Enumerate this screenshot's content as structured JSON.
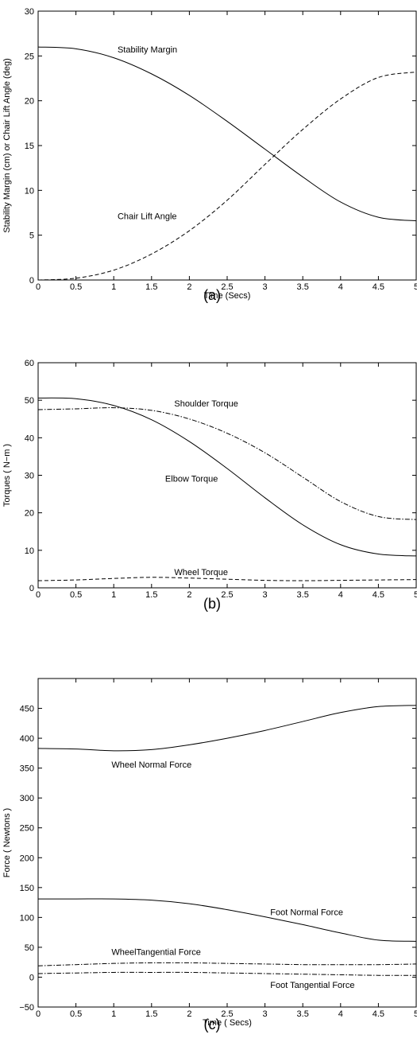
{
  "chart_data": [
    {
      "type": "line",
      "caption": "(a)",
      "xlabel": "Time (Secs)",
      "ylabel": "Stability Margin (cm) or Chair Lift Angle (deg)",
      "xlim": [
        0,
        5
      ],
      "ylim": [
        0,
        30
      ],
      "xticks": [
        0,
        0.5,
        1,
        1.5,
        2,
        2.5,
        3,
        3.5,
        4,
        4.5,
        5
      ],
      "xtick_labels": [
        "0",
        "0.5",
        "1",
        "1.5",
        "2",
        "2.5",
        "3",
        "3.5",
        "4",
        "4.5",
        "5"
      ],
      "yticks": [
        0,
        5,
        10,
        15,
        20,
        25,
        30
      ],
      "ytick_labels": [
        "0",
        "5",
        "10",
        "15",
        "20",
        "25",
        "30"
      ],
      "grid": false,
      "series": [
        {
          "name": "Stability Margin",
          "style": "solid",
          "x": [
            0,
            0.5,
            1,
            1.5,
            2,
            2.5,
            3,
            3.5,
            4,
            4.5,
            5
          ],
          "y": [
            26.0,
            25.8,
            24.8,
            23.0,
            20.6,
            17.7,
            14.6,
            11.5,
            8.7,
            7.0,
            6.6
          ]
        },
        {
          "name": "Chair Lift Angle",
          "style": "dashed",
          "x": [
            0,
            0.5,
            1,
            1.5,
            2,
            2.5,
            3,
            3.5,
            4,
            4.5,
            5
          ],
          "y": [
            0.0,
            0.2,
            1.1,
            2.9,
            5.5,
            8.9,
            12.9,
            16.8,
            20.2,
            22.6,
            23.2
          ]
        }
      ],
      "annotations": [
        {
          "text": "Stability Margin",
          "x": 1.05,
          "y": 25.4
        },
        {
          "text": "Chair Lift Angle",
          "x": 1.05,
          "y": 6.8
        }
      ]
    },
    {
      "type": "line",
      "caption": "(b)",
      "xlabel": "",
      "ylabel": "Torques ( N−m )",
      "xlim": [
        0,
        5
      ],
      "ylim": [
        0,
        60
      ],
      "xticks": [
        0,
        0.5,
        1,
        1.5,
        2,
        2.5,
        3,
        3.5,
        4,
        4.5,
        5
      ],
      "xtick_labels": [
        "0",
        "0.5",
        "1",
        "1.5",
        "2",
        "2.5",
        "3",
        "3.5",
        "4",
        "4.5",
        "5"
      ],
      "yticks": [
        0,
        10,
        20,
        30,
        40,
        50,
        60
      ],
      "ytick_labels": [
        "0",
        "10",
        "20",
        "30",
        "40",
        "50",
        "60"
      ],
      "grid": false,
      "series": [
        {
          "name": "Shoulder Torque",
          "style": "dashdot",
          "x": [
            0,
            0.5,
            1,
            1.5,
            2,
            2.5,
            3,
            3.5,
            4,
            4.5,
            5
          ],
          "y": [
            47.5,
            47.7,
            48.0,
            47.3,
            45.0,
            41.2,
            36.0,
            29.5,
            23.0,
            19.0,
            18.2
          ]
        },
        {
          "name": "Elbow Torque",
          "style": "solid",
          "x": [
            0,
            0.5,
            1,
            1.5,
            2,
            2.5,
            3,
            3.5,
            4,
            4.5,
            5
          ],
          "y": [
            50.6,
            50.4,
            48.6,
            44.8,
            39.0,
            31.8,
            24.0,
            16.8,
            11.5,
            9.0,
            8.5
          ]
        },
        {
          "name": "Wheel Torque",
          "style": "dashed",
          "x": [
            0,
            0.5,
            1,
            1.5,
            2,
            2.5,
            3,
            3.5,
            4,
            4.5,
            5
          ],
          "y": [
            1.9,
            2.1,
            2.5,
            2.8,
            2.6,
            2.3,
            2.0,
            1.9,
            2.0,
            2.1,
            2.2
          ]
        }
      ],
      "annotations": [
        {
          "text": "Shoulder Torque",
          "x": 1.8,
          "y": 48.3
        },
        {
          "text": "Elbow Torque",
          "x": 1.68,
          "y": 28.3
        },
        {
          "text": "Wheel Torque",
          "x": 1.8,
          "y": 3.4
        }
      ]
    },
    {
      "type": "line",
      "caption": "(c)",
      "xlabel": "Time ( Secs)",
      "ylabel": "Force ( Newtons )",
      "xlim": [
        0,
        5
      ],
      "ylim": [
        -50,
        500
      ],
      "xticks": [
        0,
        0.5,
        1,
        1.5,
        2,
        2.5,
        3,
        3.5,
        4,
        4.5,
        5
      ],
      "xtick_labels": [
        "0",
        "0.5",
        "1",
        "1.5",
        "2",
        "2.5",
        "3",
        "3.5",
        "4",
        "4.5",
        "5"
      ],
      "yticks": [
        -50,
        0,
        50,
        100,
        150,
        200,
        250,
        300,
        350,
        400,
        450
      ],
      "ytick_labels": [
        "−50",
        "0",
        "50",
        "100",
        "150",
        "200",
        "250",
        "300",
        "350",
        "400",
        "450"
      ],
      "grid": false,
      "series": [
        {
          "name": "Wheel Normal Force",
          "style": "solid",
          "x": [
            0,
            0.5,
            1,
            1.5,
            2,
            2.5,
            3,
            3.5,
            4,
            4.5,
            5
          ],
          "y": [
            383,
            382,
            379,
            381,
            389,
            400,
            413,
            428,
            443,
            453,
            455
          ]
        },
        {
          "name": "Foot Normal Force",
          "style": "solid",
          "x": [
            0,
            0.5,
            1,
            1.5,
            2,
            2.5,
            3,
            3.5,
            4,
            4.5,
            5
          ],
          "y": [
            131,
            131,
            131,
            129,
            123,
            113,
            101,
            88,
            74,
            62,
            60
          ]
        },
        {
          "name": "WheelTangential Force",
          "style": "dashdot",
          "x": [
            0,
            0.5,
            1,
            1.5,
            2,
            2.5,
            3,
            3.5,
            4,
            4.5,
            5
          ],
          "y": [
            19,
            21,
            23,
            24,
            24,
            23,
            22,
            21,
            21,
            21,
            22
          ]
        },
        {
          "name": "Foot Tangential Force",
          "style": "dashdot",
          "x": [
            0,
            0.5,
            1,
            1.5,
            2,
            2.5,
            3,
            3.5,
            4,
            4.5,
            5
          ],
          "y": [
            6,
            7,
            8,
            8,
            8,
            7,
            6,
            5,
            4,
            3,
            3
          ]
        }
      ],
      "annotations": [
        {
          "text": "Wheel Normal Force",
          "x": 0.97,
          "y": 351
        },
        {
          "text": "Foot Normal Force",
          "x": 3.07,
          "y": 104
        },
        {
          "text": "WheelTangential Force",
          "x": 0.97,
          "y": 37
        },
        {
          "text": "Foot Tangential Force",
          "x": 3.07,
          "y": -18
        }
      ]
    }
  ]
}
